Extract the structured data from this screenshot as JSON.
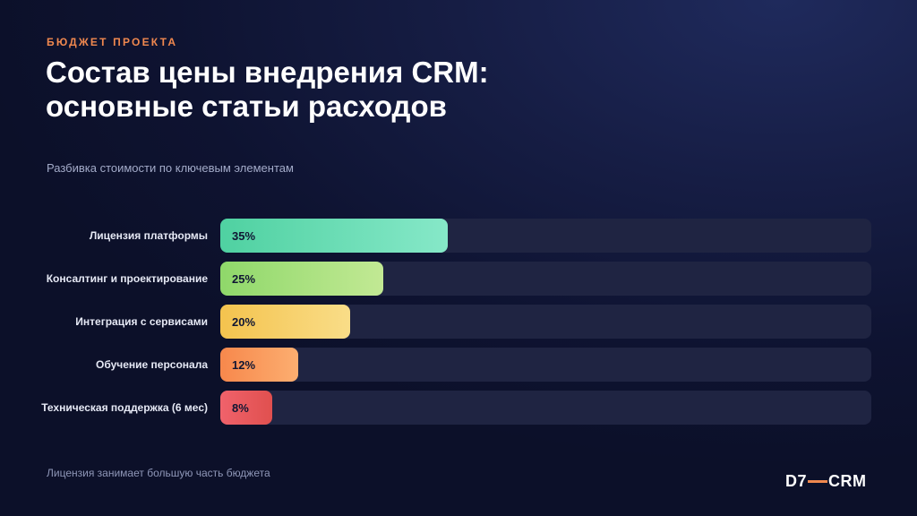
{
  "header": {
    "eyebrow": "БЮДЖЕТ ПРОЕКТА",
    "title": "Состав цены внедрения CRM: основные статьи расходов",
    "subtitle": "Разбивка стоимости по ключевым элементам"
  },
  "chart_data": {
    "type": "bar",
    "orientation": "horizontal",
    "categories": [
      "Лицензия платформы",
      "Консалтинг и проектирование",
      "Интеграция с сервисами",
      "Обучение персонала",
      "Техническая поддержка (6 мес)"
    ],
    "values": [
      35,
      25,
      20,
      12,
      8
    ],
    "value_labels": [
      "35%",
      "25%",
      "20%",
      "12%",
      "8%"
    ],
    "value_unit": "%",
    "xlim": [
      0,
      100
    ],
    "grid": false,
    "legend": "none",
    "bar_gradients": [
      [
        "#4fd1a1",
        "#86e8c8"
      ],
      [
        "#8fd86a",
        "#c2e994"
      ],
      [
        "#f4c34e",
        "#f9dd88"
      ],
      [
        "#f7884c",
        "#fcae70"
      ],
      [
        "#f0626b",
        "#e0504f"
      ]
    ]
  },
  "footer": {
    "note": "Лицензия занимает большую часть бюджета",
    "logo_left": "D7",
    "logo_right": "CRM"
  },
  "colors": {
    "accent": "#f0884f",
    "track": "#1f2442",
    "background": "#0e1331"
  }
}
